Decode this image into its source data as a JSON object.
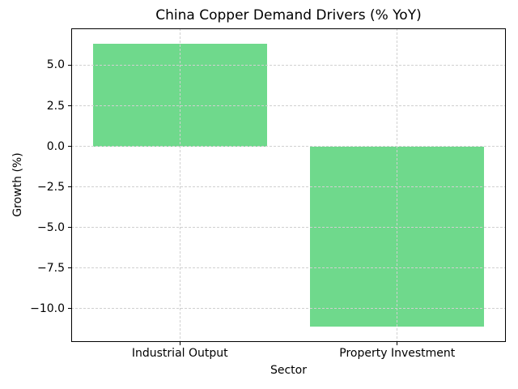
{
  "chart_data": {
    "type": "bar",
    "title": "China Copper Demand Drivers (% YoY)",
    "xlabel": "Sector",
    "ylabel": "Growth (%)",
    "categories": [
      "Industrial Output",
      "Property Investment"
    ],
    "values": [
      6.3,
      -11.1
    ],
    "yticks": [
      5.0,
      2.5,
      0.0,
      -2.5,
      -5.0,
      -7.5,
      -10.0
    ],
    "ylim": [
      -12.05,
      7.27
    ],
    "bar_width_fraction": 0.8,
    "grid": true,
    "grid_style": "dashed",
    "legend_position": "none",
    "bar_color": "#6fd98c"
  },
  "colors": {
    "background": "#ffffff",
    "grid": "#d0d0d0",
    "spine": "#000000",
    "text": "#000000"
  }
}
